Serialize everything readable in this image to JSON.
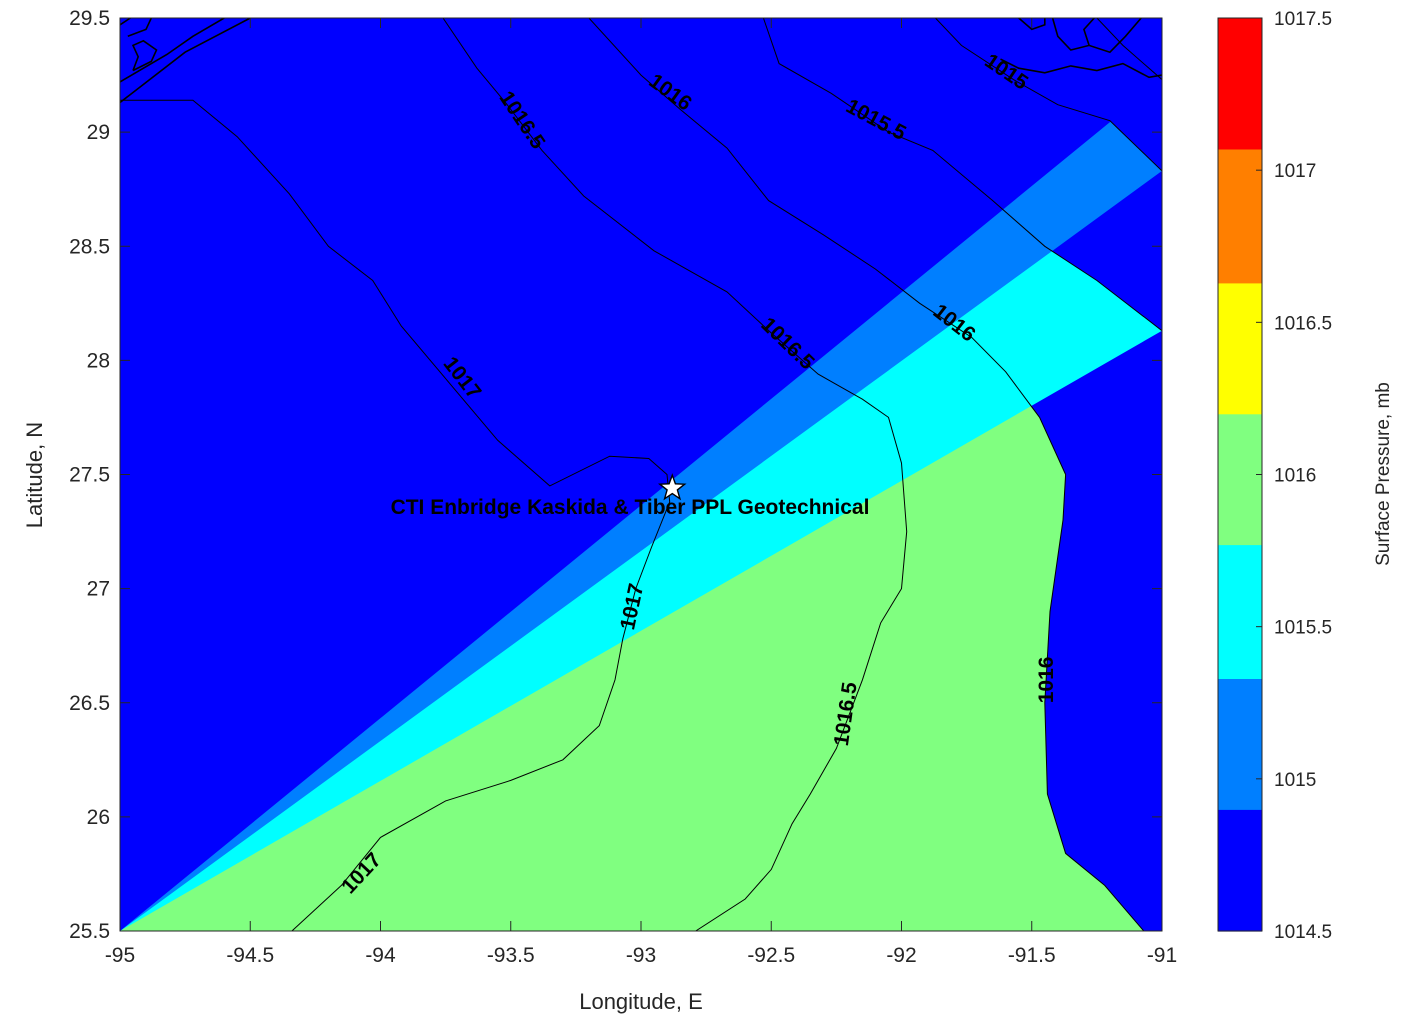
{
  "chart_data": {
    "type": "heatmap",
    "title": "",
    "xlabel": "Longitude, E",
    "ylabel": "Latitude, N",
    "xlim": [
      -95,
      -91
    ],
    "ylim": [
      25.5,
      29.5
    ],
    "xticks": [
      {
        "value": -95,
        "label": "-95"
      },
      {
        "value": -94.5,
        "label": "-94.5"
      },
      {
        "value": -94,
        "label": "-94"
      },
      {
        "value": -93.5,
        "label": "-93.5"
      },
      {
        "value": -93,
        "label": "-93"
      },
      {
        "value": -92.5,
        "label": "-92.5"
      },
      {
        "value": -92,
        "label": "-92"
      },
      {
        "value": -91.5,
        "label": "-91.5"
      },
      {
        "value": -91,
        "label": "-91"
      }
    ],
    "yticks": [
      {
        "value": 25.5,
        "label": "25.5"
      },
      {
        "value": 26,
        "label": "26"
      },
      {
        "value": 26.5,
        "label": "26.5"
      },
      {
        "value": 27,
        "label": "27"
      },
      {
        "value": 27.5,
        "label": "27.5"
      },
      {
        "value": 28,
        "label": "28"
      },
      {
        "value": 28.5,
        "label": "28.5"
      },
      {
        "value": 29,
        "label": "29"
      },
      {
        "value": 29.5,
        "label": "29.5"
      }
    ],
    "colorbar": {
      "label": "Surface Pressure, mb",
      "range": [
        1014.5,
        1017.5
      ],
      "bands": [
        {
          "from": 1014.5,
          "to": 1014.9,
          "color": "#0000ff"
        },
        {
          "from": 1014.9,
          "to": 1015.33,
          "color": "#007fff"
        },
        {
          "from": 1015.33,
          "to": 1015.77,
          "color": "#00ffff"
        },
        {
          "from": 1015.77,
          "to": 1016.2,
          "color": "#80ff80"
        },
        {
          "from": 1016.2,
          "to": 1016.63,
          "color": "#ffff00"
        },
        {
          "from": 1016.63,
          "to": 1017.07,
          "color": "#ff7f00"
        },
        {
          "from": 1017.07,
          "to": 1017.5,
          "color": "#ff0000"
        }
      ],
      "ticks": [
        {
          "value": 1014.5,
          "label": "1014.5"
        },
        {
          "value": 1015,
          "label": "1015"
        },
        {
          "value": 1015.5,
          "label": "1015.5"
        },
        {
          "value": 1016,
          "label": "1016"
        },
        {
          "value": 1016.5,
          "label": "1016.5"
        },
        {
          "value": 1017,
          "label": "1017"
        },
        {
          "value": 1017.5,
          "label": "1017.5"
        }
      ]
    },
    "contours": [
      {
        "level": 1017,
        "color": "#ff7f00",
        "label": "1017",
        "line": [
          [
            -94.34,
            25.5
          ],
          [
            -94.15,
            25.7
          ],
          [
            -94.0,
            25.91
          ],
          [
            -93.75,
            26.07
          ],
          [
            -93.5,
            26.16
          ],
          [
            -93.3,
            26.25
          ],
          [
            -93.16,
            26.4
          ],
          [
            -93.1,
            26.6
          ],
          [
            -93.07,
            26.78
          ],
          [
            -93.02,
            27.0
          ],
          [
            -92.96,
            27.18
          ],
          [
            -92.89,
            27.38
          ],
          [
            -92.9,
            27.5
          ],
          [
            -92.97,
            27.57
          ],
          [
            -93.12,
            27.58
          ],
          [
            -93.35,
            27.45
          ],
          [
            -93.55,
            27.65
          ],
          [
            -93.75,
            27.92
          ],
          [
            -93.92,
            28.15
          ],
          [
            -94.03,
            28.35
          ],
          [
            -94.2,
            28.5
          ],
          [
            -94.35,
            28.73
          ],
          [
            -94.55,
            28.98
          ],
          [
            -94.72,
            29.14
          ],
          [
            -95,
            29.14
          ]
        ],
        "labels": [
          {
            "x": -94.07,
            "y": 25.75,
            "angle": -47
          },
          {
            "x": -93.03,
            "y": 26.92,
            "angle": -78
          },
          {
            "x": -93.69,
            "y": 27.92,
            "angle": 52
          }
        ]
      },
      {
        "level": 1016.5,
        "color": "#ffff00",
        "label": "1016.5",
        "line": [
          [
            -92.79,
            25.5
          ],
          [
            -92.6,
            25.64
          ],
          [
            -92.5,
            25.77
          ],
          [
            -92.42,
            25.97
          ],
          [
            -92.35,
            26.1
          ],
          [
            -92.25,
            26.3
          ],
          [
            -92.15,
            26.6
          ],
          [
            -92.08,
            26.85
          ],
          [
            -92.0,
            27.0
          ],
          [
            -91.98,
            27.25
          ],
          [
            -92.0,
            27.55
          ],
          [
            -92.05,
            27.75
          ],
          [
            -92.15,
            27.83
          ],
          [
            -92.32,
            27.94
          ],
          [
            -92.5,
            28.12
          ],
          [
            -92.67,
            28.3
          ],
          [
            -92.95,
            28.48
          ],
          [
            -93.22,
            28.72
          ],
          [
            -93.38,
            28.92
          ],
          [
            -93.52,
            29.13
          ],
          [
            -93.63,
            29.28
          ],
          [
            -93.76,
            29.5
          ]
        ],
        "labels": [
          {
            "x": -92.21,
            "y": 26.45,
            "angle": -82
          },
          {
            "x": -92.44,
            "y": 28.07,
            "angle": 44
          },
          {
            "x": -93.46,
            "y": 29.05,
            "angle": 56
          }
        ]
      },
      {
        "level": 1016,
        "color": "#80ff80",
        "label": "1016",
        "line": [
          [
            -91.07,
            25.5
          ],
          [
            -91.22,
            25.7
          ],
          [
            -91.37,
            25.84
          ],
          [
            -91.44,
            26.1
          ],
          [
            -91.45,
            26.5
          ],
          [
            -91.43,
            26.9
          ],
          [
            -91.38,
            27.3
          ],
          [
            -91.37,
            27.5
          ],
          [
            -91.47,
            27.75
          ],
          [
            -91.6,
            27.95
          ],
          [
            -91.73,
            28.1
          ],
          [
            -91.93,
            28.25
          ],
          [
            -92.1,
            28.4
          ],
          [
            -92.3,
            28.55
          ],
          [
            -92.51,
            28.7
          ],
          [
            -92.67,
            28.93
          ],
          [
            -92.85,
            29.1
          ],
          [
            -93.0,
            29.25
          ],
          [
            -93.2,
            29.5
          ]
        ],
        "labels": [
          {
            "x": -91.44,
            "y": 26.6,
            "angle": -90
          },
          {
            "x": -91.8,
            "y": 28.16,
            "angle": 38
          },
          {
            "x": -92.89,
            "y": 29.17,
            "angle": 36
          }
        ]
      },
      {
        "level": 1015.5,
        "color": "#00ffff",
        "label": "1015.5",
        "line": [
          [
            -91,
            28.13
          ],
          [
            -91.25,
            28.35
          ],
          [
            -91.45,
            28.5
          ],
          [
            -91.65,
            28.7
          ],
          [
            -91.88,
            28.92
          ],
          [
            -92.05,
            29.0
          ],
          [
            -92.27,
            29.17
          ],
          [
            -92.47,
            29.3
          ],
          [
            -92.53,
            29.5
          ]
        ],
        "labels": [
          {
            "x": -92.1,
            "y": 29.05,
            "angle": 28
          }
        ]
      },
      {
        "level": 1015,
        "color": "#007fff",
        "label": "1015",
        "line": [
          [
            -91,
            28.83
          ],
          [
            -91.2,
            29.05
          ],
          [
            -91.4,
            29.12
          ],
          [
            -91.57,
            29.23
          ],
          [
            -91.77,
            29.38
          ],
          [
            -91.87,
            29.5
          ]
        ],
        "labels": [
          {
            "x": -91.6,
            "y": 29.26,
            "angle": 34
          }
        ]
      },
      {
        "level": 1014.5,
        "color": "#0000ff",
        "label": "",
        "line": [
          [
            -91,
            29.23
          ],
          [
            -91.15,
            29.38
          ],
          [
            -91.25,
            29.5
          ]
        ],
        "labels": []
      }
    ],
    "site": {
      "lon": -92.88,
      "lat": 27.44,
      "label": "CTI Enbridge  Kaskida & Tiber PPL Geotechnical"
    },
    "coast": [
      {
        "line": [
          [
            -95,
            29.13
          ],
          [
            -94.75,
            29.35
          ],
          [
            -94.5,
            29.5
          ]
        ]
      },
      {
        "line": [
          [
            -95,
            29.22
          ],
          [
            -94.82,
            29.34
          ],
          [
            -94.72,
            29.42
          ],
          [
            -94.6,
            29.5
          ]
        ]
      },
      {
        "line": [
          [
            -94.95,
            29.27
          ],
          [
            -94.88,
            29.31
          ],
          [
            -94.86,
            29.36
          ],
          [
            -94.91,
            29.4
          ],
          [
            -94.95,
            29.38
          ],
          [
            -94.93,
            29.33
          ],
          [
            -94.95,
            29.27
          ]
        ]
      },
      {
        "line": [
          [
            -94.97,
            29.42
          ],
          [
            -94.9,
            29.45
          ],
          [
            -94.88,
            29.5
          ]
        ]
      },
      {
        "line": [
          [
            -95,
            29.47
          ],
          [
            -94.96,
            29.5
          ]
        ]
      },
      {
        "line": [
          [
            -91.62,
            29.32
          ],
          [
            -91.55,
            29.28
          ],
          [
            -91.45,
            29.26
          ],
          [
            -91.35,
            29.29
          ],
          [
            -91.25,
            29.27
          ],
          [
            -91.15,
            29.3
          ],
          [
            -91.05,
            29.24
          ],
          [
            -91,
            29.25
          ]
        ]
      },
      {
        "line": [
          [
            -91.42,
            29.5
          ],
          [
            -91.4,
            29.42
          ],
          [
            -91.35,
            29.36
          ],
          [
            -91.28,
            29.38
          ],
          [
            -91.2,
            29.35
          ],
          [
            -91.14,
            29.42
          ],
          [
            -91.08,
            29.5
          ]
        ]
      },
      {
        "line": [
          [
            -91.28,
            29.38
          ],
          [
            -91.3,
            29.45
          ],
          [
            -91.26,
            29.5
          ]
        ]
      },
      {
        "line": [
          [
            -91.55,
            29.5
          ],
          [
            -91.5,
            29.45
          ],
          [
            -91.45,
            29.47
          ],
          [
            -91.45,
            29.5
          ]
        ]
      }
    ]
  }
}
